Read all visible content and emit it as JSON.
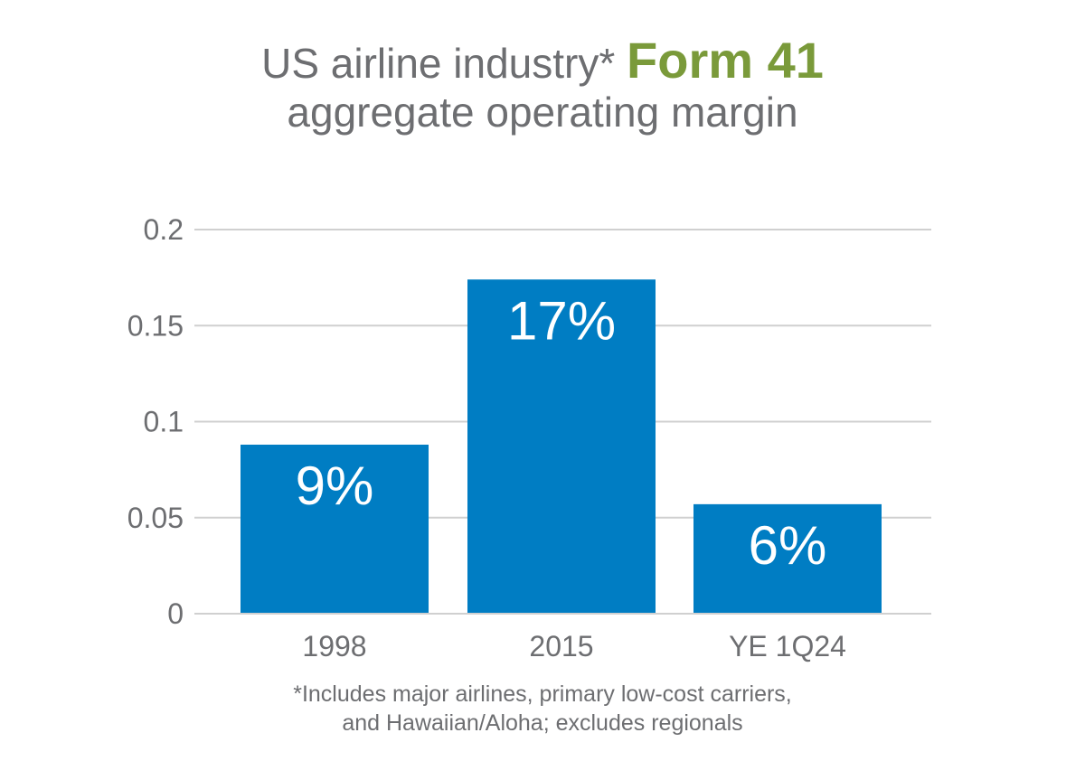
{
  "colors": {
    "text": "#6d6e71",
    "accent": "#7a9a3a",
    "bar": "#007dc3",
    "grid": "#d0d0d0",
    "label": "#ffffff"
  },
  "chart_data": {
    "type": "bar",
    "title_part1": "US airline industry*",
    "title_highlight": "Form 41",
    "title_line2": "aggregate operating margin",
    "categories": [
      "1998",
      "2015",
      "YE 1Q24"
    ],
    "values": [
      0.088,
      0.174,
      0.057
    ],
    "data_labels": [
      "9%",
      "17%",
      "6%"
    ],
    "yticks": [
      0,
      0.05,
      0.1,
      0.15,
      0.2
    ],
    "ytick_labels": [
      "0",
      "0.05",
      "0.1",
      "0.15",
      "0.2"
    ],
    "ylim": [
      0,
      0.2
    ],
    "grid": true,
    "footnote_line1": "*Includes major airlines, primary low-cost carriers,",
    "footnote_line2": "and Hawaiian/Aloha; excludes regionals"
  }
}
